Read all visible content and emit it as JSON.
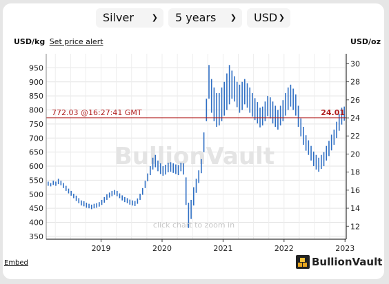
{
  "selectors": {
    "metal": "Silver",
    "period": "5 years",
    "currency": "USD"
  },
  "header": {
    "left_unit": "USD/kg",
    "price_alert_link": "Set price alert",
    "right_unit": "USD/oz"
  },
  "footer": {
    "embed_link": "Embed",
    "logo_text": "BullionVault"
  },
  "chart_data": {
    "type": "bar",
    "style": "ohlc-range",
    "watermark": "BullionVault",
    "hint": "click chart to zoom in",
    "x_ticks": [
      "2019",
      "2020",
      "2021",
      "2022",
      "2023"
    ],
    "x_range": [
      2018.1,
      2023.02
    ],
    "y_left": {
      "unit": "USD/kg",
      "range": [
        340,
        1000
      ],
      "ticks": [
        350,
        400,
        450,
        500,
        550,
        600,
        650,
        700,
        750,
        800,
        850,
        900,
        950
      ]
    },
    "y_right": {
      "unit": "USD/oz",
      "range": [
        10.57,
        31.1
      ],
      "ticks": [
        12,
        14,
        16,
        18,
        20,
        22,
        24,
        26,
        28,
        30
      ]
    },
    "current_price": {
      "left_label": "772.03 @16:27:41 GMT",
      "right_label": "24.01",
      "value_kg": 772.03,
      "value_oz": 24.01,
      "color": "#b01d1d"
    },
    "series_color": "#2f6fc4",
    "grid": true,
    "series": [
      {
        "ranges_kg": [
          [
            530,
            545
          ],
          [
            528,
            540
          ],
          [
            533,
            548
          ],
          [
            530,
            545
          ],
          [
            536,
            555
          ],
          [
            532,
            548
          ],
          [
            522,
            540
          ],
          [
            512,
            530
          ],
          [
            503,
            520
          ],
          [
            495,
            512
          ],
          [
            486,
            502
          ],
          [
            476,
            495
          ],
          [
            468,
            486
          ],
          [
            460,
            478
          ],
          [
            457,
            475
          ],
          [
            452,
            470
          ],
          [
            450,
            466
          ],
          [
            447,
            463
          ],
          [
            450,
            466
          ],
          [
            452,
            468
          ],
          [
            456,
            472
          ],
          [
            462,
            480
          ],
          [
            470,
            490
          ],
          [
            480,
            500
          ],
          [
            488,
            506
          ],
          [
            493,
            512
          ],
          [
            498,
            515
          ],
          [
            493,
            512
          ],
          [
            486,
            503
          ],
          [
            478,
            496
          ],
          [
            472,
            490
          ],
          [
            468,
            486
          ],
          [
            463,
            481
          ],
          [
            460,
            478
          ],
          [
            458,
            476
          ],
          [
            466,
            485
          ],
          [
            480,
            502
          ],
          [
            498,
            522
          ],
          [
            522,
            548
          ],
          [
            546,
            574
          ],
          [
            568,
            600
          ],
          [
            588,
            630
          ],
          [
            596,
            640
          ],
          [
            582,
            620
          ],
          [
            572,
            610
          ],
          [
            566,
            600
          ],
          [
            570,
            605
          ],
          [
            578,
            612
          ],
          [
            580,
            614
          ],
          [
            576,
            610
          ],
          [
            572,
            606
          ],
          [
            568,
            604
          ],
          [
            582,
            612
          ],
          [
            570,
            610
          ],
          [
            462,
            560
          ],
          [
            380,
            470
          ],
          [
            412,
            480
          ],
          [
            460,
            525
          ],
          [
            505,
            555
          ],
          [
            540,
            585
          ],
          [
            575,
            625
          ],
          [
            650,
            720
          ],
          [
            760,
            840
          ],
          [
            840,
            960
          ],
          [
            790,
            910
          ],
          [
            760,
            880
          ],
          [
            740,
            860
          ],
          [
            745,
            860
          ],
          [
            760,
            880
          ],
          [
            780,
            900
          ],
          [
            800,
            930
          ],
          [
            820,
            960
          ],
          [
            840,
            940
          ],
          [
            830,
            920
          ],
          [
            810,
            900
          ],
          [
            790,
            890
          ],
          [
            800,
            900
          ],
          [
            820,
            910
          ],
          [
            808,
            895
          ],
          [
            790,
            880
          ],
          [
            776,
            860
          ],
          [
            764,
            842
          ],
          [
            752,
            828
          ],
          [
            738,
            808
          ],
          [
            745,
            812
          ],
          [
            760,
            830
          ],
          [
            778,
            850
          ],
          [
            770,
            845
          ],
          [
            752,
            830
          ],
          [
            740,
            815
          ],
          [
            730,
            800
          ],
          [
            745,
            815
          ],
          [
            760,
            835
          ],
          [
            780,
            860
          ],
          [
            800,
            880
          ],
          [
            812,
            890
          ],
          [
            800,
            876
          ],
          [
            780,
            855
          ],
          [
            740,
            815
          ],
          [
            706,
            770
          ],
          [
            676,
            740
          ],
          [
            655,
            710
          ],
          [
            640,
            692
          ],
          [
            620,
            672
          ],
          [
            600,
            652
          ],
          [
            588,
            640
          ],
          [
            580,
            630
          ],
          [
            590,
            640
          ],
          [
            600,
            650
          ],
          [
            620,
            672
          ],
          [
            636,
            690
          ],
          [
            656,
            712
          ],
          [
            676,
            730
          ],
          [
            700,
            758
          ],
          [
            726,
            786
          ],
          [
            748,
            808
          ],
          [
            762,
            812
          ]
        ]
      }
    ]
  }
}
